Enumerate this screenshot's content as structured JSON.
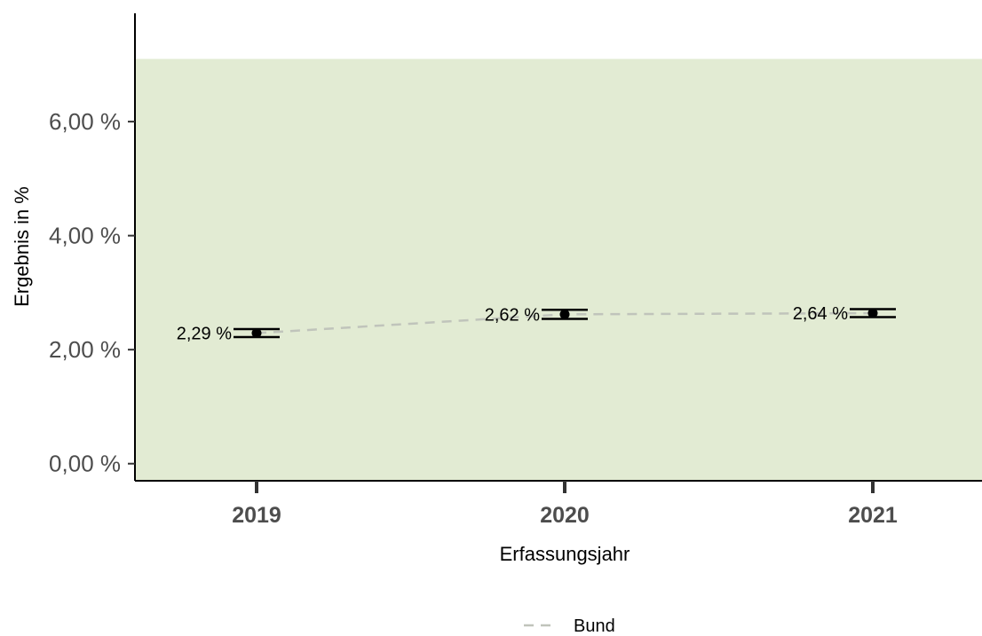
{
  "colors": {
    "band": "#e2ebd3",
    "reference_line": "#c0c4bb",
    "point": "#000000",
    "axis": "#000000",
    "tick_text": "#4d4d4d"
  },
  "chart_data": {
    "type": "line",
    "title": "",
    "xlabel": "Erfassungsjahr",
    "ylabel": "Ergebnis in %",
    "categories": [
      "2019",
      "2020",
      "2021"
    ],
    "ylim": [
      -0.3,
      7.9
    ],
    "y_ticks": [
      0,
      2,
      4,
      6
    ],
    "y_tick_labels": [
      "0,00 %",
      "2,00 %",
      "4,00 %",
      "6,00 %"
    ],
    "reference_band": {
      "from": -0.3,
      "to": 7.1
    },
    "grid": false,
    "series": [
      {
        "name": "Bund",
        "style": "dashed",
        "values": [
          2.29,
          2.62,
          2.64
        ],
        "ci_lower": [
          2.22,
          2.54,
          2.57
        ],
        "ci_upper": [
          2.36,
          2.7,
          2.71
        ],
        "value_labels": [
          "2,29 %",
          "2,62 %",
          "2,64 %"
        ]
      }
    ],
    "legend": {
      "position": "bottom",
      "entries": [
        "Bund"
      ]
    }
  }
}
